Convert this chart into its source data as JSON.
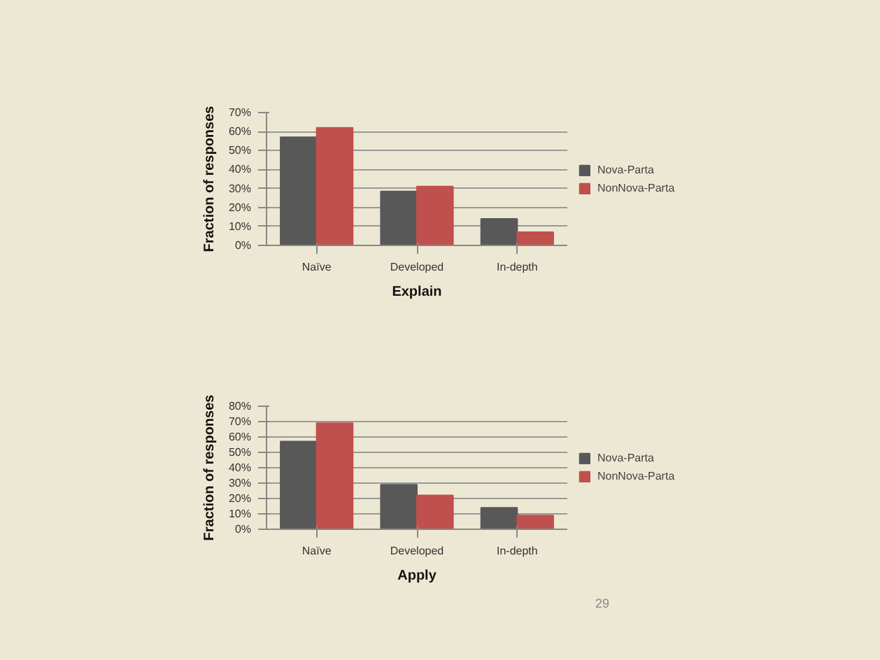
{
  "chart_data": [
    {
      "type": "bar",
      "xlabel": "Explain",
      "ylabel": "Fraction of responses",
      "categories": [
        "Naïve",
        "Developed",
        "In-depth"
      ],
      "series": [
        {
          "name": "Nova-Parta",
          "color": "#585858",
          "values": [
            57,
            28.5,
            14
          ]
        },
        {
          "name": "NonNova-Parta",
          "color": "#c0504d",
          "values": [
            62,
            31,
            7
          ]
        }
      ],
      "ylim": [
        0,
        70
      ],
      "yticks": [
        {
          "value": 0,
          "label": "0%"
        },
        {
          "value": 10,
          "label": "10%"
        },
        {
          "value": 20,
          "label": "20%"
        },
        {
          "value": 30,
          "label": "30%"
        },
        {
          "value": 40,
          "label": "40%"
        },
        {
          "value": 50,
          "label": "50%"
        },
        {
          "value": 60,
          "label": "60%"
        },
        {
          "value": 70,
          "label": "70%"
        }
      ],
      "grid": "y",
      "legend": "right"
    },
    {
      "type": "bar",
      "xlabel": "Apply",
      "ylabel": "Fraction of responses",
      "categories": [
        "Naïve",
        "Developed",
        "In-depth"
      ],
      "series": [
        {
          "name": "Nova-Parta",
          "color": "#585858",
          "values": [
            57,
            29,
            14
          ]
        },
        {
          "name": "NonNova-Parta",
          "color": "#c0504d",
          "values": [
            69,
            22,
            9
          ]
        }
      ],
      "ylim": [
        0,
        80
      ],
      "yticks": [
        {
          "value": 0,
          "label": "0%"
        },
        {
          "value": 10,
          "label": "10%"
        },
        {
          "value": 20,
          "label": "20%"
        },
        {
          "value": 30,
          "label": "30%"
        },
        {
          "value": 40,
          "label": "40%"
        },
        {
          "value": 50,
          "label": "50%"
        },
        {
          "value": 60,
          "label": "60%"
        },
        {
          "value": 70,
          "label": "70%"
        },
        {
          "value": 80,
          "label": "80%"
        }
      ],
      "grid": "y",
      "legend": "right",
      "annotations": [
        "29"
      ]
    }
  ]
}
